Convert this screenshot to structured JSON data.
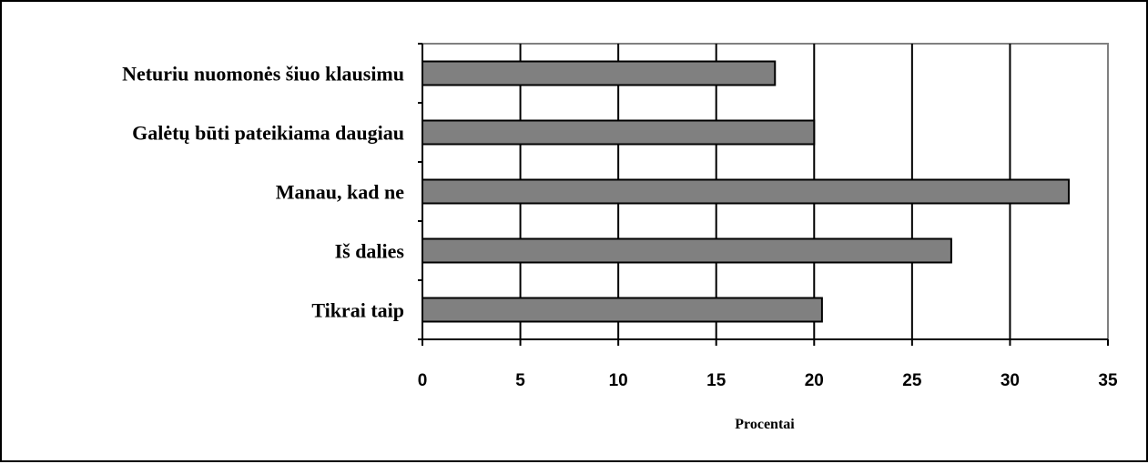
{
  "chart_data": {
    "type": "bar",
    "orientation": "horizontal",
    "categories": [
      "Neturiu nuomonės šiuo klausimu",
      "Galėtų būti pateikiama daugiau",
      "Manau, kad ne",
      "Iš dalies",
      "Tikrai taip"
    ],
    "values": [
      18,
      20,
      33,
      27,
      20.4
    ],
    "xlabel": "Procentai",
    "ylabel": "",
    "xlim": [
      0,
      35
    ],
    "xticks": [
      "0",
      "5",
      "10",
      "15",
      "20",
      "25",
      "30",
      "35"
    ],
    "grid": "vertical",
    "legend": "none",
    "bar_color": "#808080",
    "bar_edge_color": "#000000",
    "plot_border_color": "#808080"
  }
}
